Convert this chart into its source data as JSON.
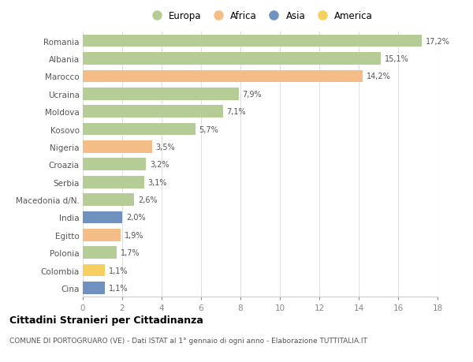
{
  "countries": [
    "Romania",
    "Albania",
    "Marocco",
    "Ucraina",
    "Moldova",
    "Kosovo",
    "Nigeria",
    "Croazia",
    "Serbia",
    "Macedonia d/N.",
    "India",
    "Egitto",
    "Polonia",
    "Colombia",
    "Cina"
  ],
  "values": [
    17.2,
    15.1,
    14.2,
    7.9,
    7.1,
    5.7,
    3.5,
    3.2,
    3.1,
    2.6,
    2.0,
    1.9,
    1.7,
    1.1,
    1.1
  ],
  "labels": [
    "17,2%",
    "15,1%",
    "14,2%",
    "7,9%",
    "7,1%",
    "5,7%",
    "3,5%",
    "3,2%",
    "3,1%",
    "2,6%",
    "2,0%",
    "1,9%",
    "1,7%",
    "1,1%",
    "1,1%"
  ],
  "colors": [
    "#b5cc96",
    "#b5cc96",
    "#f4bc87",
    "#b5cc96",
    "#b5cc96",
    "#b5cc96",
    "#f4bc87",
    "#b5cc96",
    "#b5cc96",
    "#b5cc96",
    "#7090c0",
    "#f4bc87",
    "#b5cc96",
    "#f5d060",
    "#7090c0"
  ],
  "legend_labels": [
    "Europa",
    "Africa",
    "Asia",
    "America"
  ],
  "legend_colors": [
    "#b5cc96",
    "#f4bc87",
    "#7090c0",
    "#f5d060"
  ],
  "title": "Cittadini Stranieri per Cittadinanza",
  "subtitle": "COMUNE DI PORTOGRUARO (VE) - Dati ISTAT al 1° gennaio di ogni anno - Elaborazione TUTTITALIA.IT",
  "xlim": [
    0,
    18
  ],
  "xticks": [
    0,
    2,
    4,
    6,
    8,
    10,
    12,
    14,
    16,
    18
  ],
  "bg_color": "#ffffff",
  "grid_color": "#e0e0e0",
  "bar_height": 0.7
}
